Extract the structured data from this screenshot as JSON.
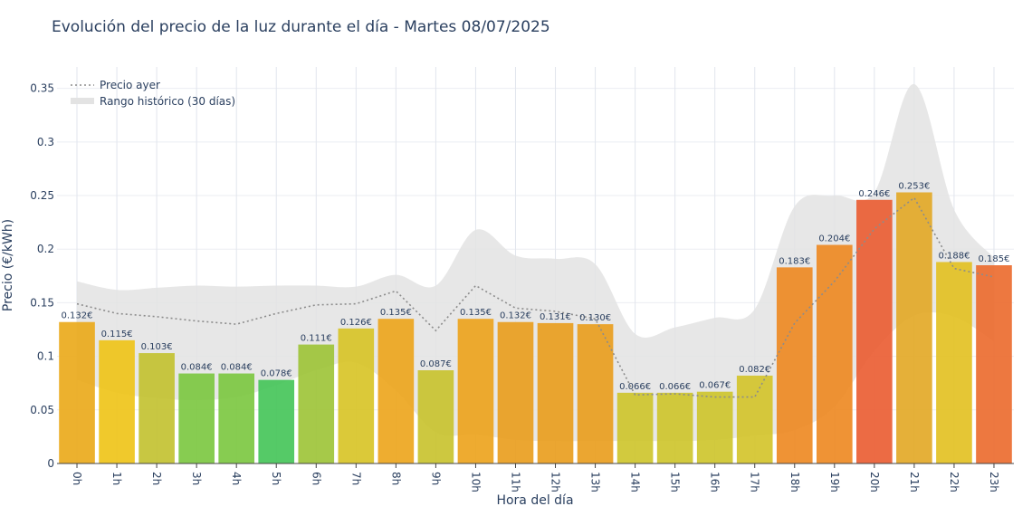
{
  "chart_data": {
    "type": "bar",
    "title": "Evolución del precio de la luz durante el día - Martes 08/07/2025",
    "xlabel": "Hora del día",
    "ylabel": "Precio (€/kWh)",
    "ylim": [
      0,
      0.37
    ],
    "yticks": [
      0,
      0.05,
      0.1,
      0.15,
      0.2,
      0.25,
      0.3,
      0.35
    ],
    "ytick_labels": [
      "0",
      "0.05",
      "0.1",
      "0.15",
      "0.2",
      "0.25",
      "0.3",
      "0.35"
    ],
    "grid": true,
    "legend_position": "top-left",
    "categories": [
      "0h",
      "1h",
      "2h",
      "3h",
      "4h",
      "5h",
      "6h",
      "7h",
      "8h",
      "9h",
      "10h",
      "11h",
      "12h",
      "13h",
      "14h",
      "15h",
      "16h",
      "17h",
      "18h",
      "19h",
      "20h",
      "21h",
      "22h",
      "23h"
    ],
    "series": [
      {
        "kind": "bar",
        "values": [
          0.132,
          0.115,
          0.103,
          0.084,
          0.084,
          0.078,
          0.111,
          0.126,
          0.135,
          0.087,
          0.135,
          0.132,
          0.131,
          0.13,
          0.066,
          0.066,
          0.067,
          0.082,
          0.183,
          0.204,
          0.246,
          0.253,
          0.188,
          0.185
        ],
        "labels": [
          "0.132€",
          "0.115€",
          "0.103€",
          "0.084€",
          "0.084€",
          "0.078€",
          "0.111€",
          "0.126€",
          "0.135€",
          "0.087€",
          "0.135€",
          "0.132€",
          "0.131€",
          "0.130€",
          "0.066€",
          "0.066€",
          "0.067€",
          "0.082€",
          "0.183€",
          "0.204€",
          "0.246€",
          "0.253€",
          "0.188€",
          "0.185€"
        ],
        "colors": [
          "#eaaa1c",
          "#efc41a",
          "#c3c232",
          "#7dc842",
          "#7dc842",
          "#46c65a",
          "#9ec43a",
          "#d8c428",
          "#eda61e",
          "#c9c330",
          "#eda41e",
          "#e99e20",
          "#e99e20",
          "#e99e20",
          "#cec62e",
          "#cec62e",
          "#cec62e",
          "#d4c42c",
          "#ee8a24",
          "#ee8a24",
          "#ea5e34",
          "#e3a928",
          "#e3c124",
          "#ec6c30"
        ]
      },
      {
        "name": "Precio ayer",
        "kind": "line",
        "style": "dotted",
        "color": "#8c8c8c",
        "values": [
          0.149,
          0.14,
          0.137,
          0.133,
          0.13,
          0.14,
          0.148,
          0.149,
          0.161,
          0.124,
          0.166,
          0.145,
          0.142,
          0.135,
          0.064,
          0.065,
          0.062,
          0.062,
          0.131,
          0.17,
          0.219,
          0.248,
          0.182,
          0.174
        ]
      },
      {
        "name": "Rango histórico (30 días)",
        "kind": "band",
        "color": "#e3e3e3",
        "upper": [
          0.17,
          0.162,
          0.164,
          0.166,
          0.165,
          0.166,
          0.166,
          0.165,
          0.176,
          0.166,
          0.218,
          0.194,
          0.191,
          0.186,
          0.121,
          0.127,
          0.136,
          0.144,
          0.24,
          0.25,
          0.253,
          0.354,
          0.237,
          0.192
        ],
        "lower": [
          0.078,
          0.066,
          0.061,
          0.059,
          0.062,
          0.073,
          0.087,
          0.094,
          0.068,
          0.029,
          0.027,
          0.022,
          0.021,
          0.021,
          0.021,
          0.021,
          0.022,
          0.026,
          0.031,
          0.053,
          0.105,
          0.138,
          0.137,
          0.114
        ]
      }
    ]
  }
}
